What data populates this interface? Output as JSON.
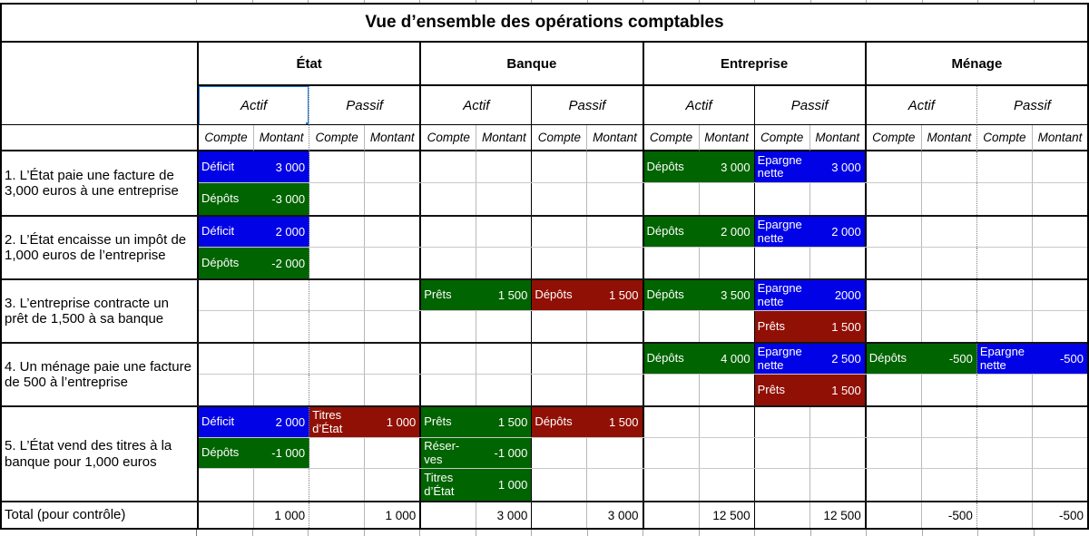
{
  "title": "Vue d’ensemble des opérations comptables",
  "sectors": [
    "État",
    "Banque",
    "Entreprise",
    "Ménage"
  ],
  "headers": {
    "actif": "Actif",
    "passif": "Passif",
    "compte": "Compte",
    "montant": "Montant"
  },
  "colors": {
    "blue": "#0202e6",
    "green": "#006400",
    "red": "#911005",
    "selection": "#1f7ad6"
  },
  "rows": [
    {
      "label": "1. L’État paie une facture de 3,000 euros à une entreprise",
      "subrows": [
        {
          "cells": {
            "0": {
              "account": "Déficit",
              "amount": "3 000",
              "color": "blue"
            },
            "4": {
              "account": "Dépôts",
              "amount": "3 000",
              "color": "green"
            },
            "5": {
              "account": "Epargne\nnette",
              "amount": "3 000",
              "color": "blue"
            }
          }
        },
        {
          "cells": {
            "0": {
              "account": "Dépôts",
              "amount": "-3 000",
              "color": "green"
            }
          }
        }
      ]
    },
    {
      "label": "2. L’État encaisse un impôt de 1,000 euros de l’entreprise",
      "subrows": [
        {
          "cells": {
            "0": {
              "account": "Déficit",
              "amount": "2 000",
              "color": "blue"
            },
            "4": {
              "account": "Dépôts",
              "amount": "2 000",
              "color": "green"
            },
            "5": {
              "account": "Epargne\nnette",
              "amount": "2 000",
              "color": "blue"
            }
          }
        },
        {
          "cells": {
            "0": {
              "account": "Dépôts",
              "amount": "-2 000",
              "color": "green"
            }
          }
        }
      ]
    },
    {
      "label": "3. L’entreprise contracte un prêt de 1,500 à sa banque",
      "subrows": [
        {
          "cells": {
            "2": {
              "account": "Prêts",
              "amount": "1 500",
              "color": "green"
            },
            "3": {
              "account": "Dépôts",
              "amount": "1 500",
              "color": "red"
            },
            "4": {
              "account": "Dépôts",
              "amount": "3 500",
              "color": "green"
            },
            "5": {
              "account": "Epargne\nnette",
              "amount": "2000",
              "color": "blue"
            }
          }
        },
        {
          "cells": {
            "5": {
              "account": "Prêts",
              "amount": "1 500",
              "color": "red"
            }
          }
        }
      ]
    },
    {
      "label": "4. Un ménage paie une facture de 500 à l’entreprise",
      "subrows": [
        {
          "cells": {
            "4": {
              "account": "Dépôts",
              "amount": "4 000",
              "color": "green"
            },
            "5": {
              "account": "Epargne\nnette",
              "amount": "2 500",
              "color": "blue"
            },
            "6": {
              "account": "Dépôts",
              "amount": "-500",
              "color": "green"
            },
            "7": {
              "account": "Epargne\nnette",
              "amount": "-500",
              "color": "blue"
            }
          }
        },
        {
          "cells": {
            "5": {
              "account": "Prêts",
              "amount": "1 500",
              "color": "red"
            }
          }
        }
      ]
    },
    {
      "label": "5. L’État vend des titres à la banque pour 1,000 euros",
      "subrows": [
        {
          "cells": {
            "0": {
              "account": "Déficit",
              "amount": "2 000",
              "color": "blue"
            },
            "1": {
              "account": "Titres\nd’État",
              "amount": "1 000",
              "color": "red"
            },
            "2": {
              "account": "Prêts",
              "amount": "1 500",
              "color": "green"
            },
            "3": {
              "account": "Dépôts",
              "amount": "1 500",
              "color": "red"
            }
          }
        },
        {
          "cells": {
            "0": {
              "account": "Dépôts",
              "amount": "-1 000",
              "color": "green"
            },
            "2": {
              "account": "Réser-\nves",
              "amount": "-1 000",
              "color": "green"
            }
          }
        },
        {
          "cells": {
            "2": {
              "account": "Titres\nd’État",
              "amount": "1 000",
              "color": "green"
            }
          }
        }
      ]
    }
  ],
  "total": {
    "label": "Total (pour contrôle)",
    "amounts": [
      "1 000",
      "1 000",
      "3 000",
      "3 000",
      "12 500",
      "12 500",
      "-500",
      "-500"
    ]
  }
}
